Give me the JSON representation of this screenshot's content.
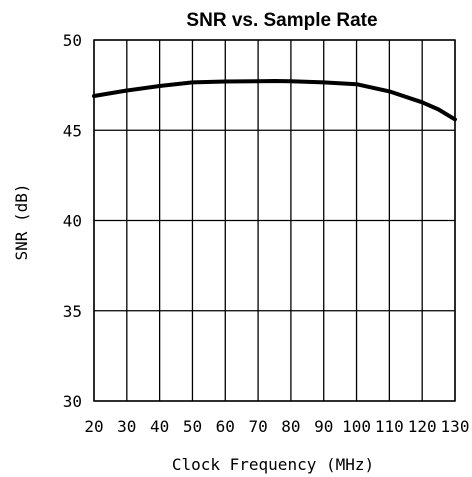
{
  "chart_data": {
    "type": "line",
    "title": "SNR vs. Sample Rate",
    "xlabel": "Clock Frequency (MHz)",
    "ylabel": "SNR (dB)",
    "xlim": [
      20,
      130
    ],
    "ylim": [
      30,
      50
    ],
    "xticks": [
      20,
      30,
      40,
      50,
      60,
      70,
      80,
      90,
      100,
      110,
      120,
      130
    ],
    "yticks": [
      30,
      35,
      40,
      45,
      50
    ],
    "grid": true,
    "series": [
      {
        "x": [
          20,
          30,
          40,
          50,
          60,
          70,
          75,
          80,
          90,
          100,
          110,
          120,
          125,
          130
        ],
        "y": [
          46.9,
          47.2,
          47.45,
          47.65,
          47.7,
          47.72,
          47.73,
          47.72,
          47.65,
          47.55,
          47.15,
          46.55,
          46.15,
          45.6
        ],
        "color": "#000000"
      }
    ]
  }
}
